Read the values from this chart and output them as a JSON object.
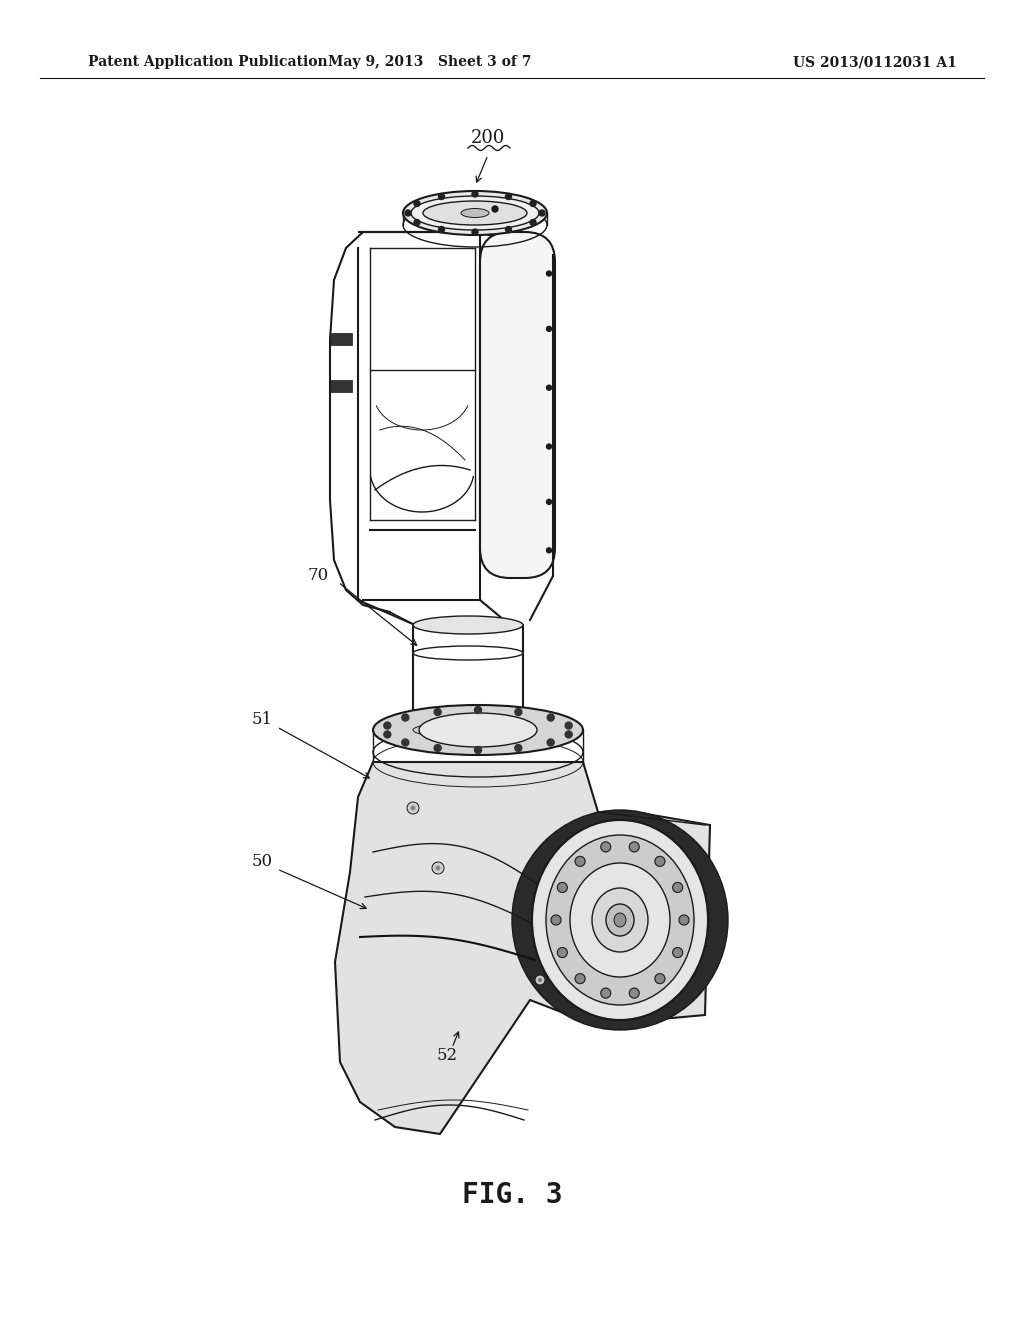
{
  "bg_color": "#ffffff",
  "lc": "#1a1a1a",
  "lc_light": "#555555",
  "header_left": "Patent Application Publication",
  "header_center": "May 9, 2013   Sheet 3 of 7",
  "header_right": "US 2013/0112031 A1",
  "figure_label": "FIG. 3",
  "ref_200": "200",
  "ref_70": "70",
  "ref_51": "51",
  "ref_50": "50",
  "ref_52": "52",
  "header_font_size": 10,
  "fig_label_font_size": 20,
  "ref_font_size": 12
}
